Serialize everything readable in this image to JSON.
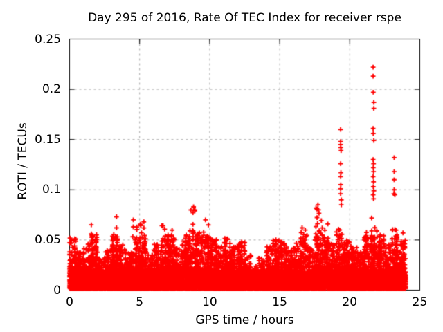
{
  "chart_data": {
    "type": "scatter",
    "title": "Day 295 of 2016, Rate Of TEC Index for receiver rspe",
    "xlabel": "GPS time / hours",
    "ylabel": "ROTI / TECUs",
    "xlim": [
      0,
      25
    ],
    "ylim": [
      0,
      0.25
    ],
    "xticks": [
      0,
      5,
      10,
      15,
      20,
      25
    ],
    "yticks": [
      0,
      0.05,
      0.1,
      0.15,
      0.2,
      0.25
    ],
    "xtick_labels": [
      "0",
      "5",
      "10",
      "15",
      "20",
      "25"
    ],
    "ytick_labels": [
      "0",
      "0.05",
      "0.1",
      "0.15",
      "0.2",
      "0.25"
    ],
    "grid": true,
    "legend": "none",
    "marker": "plus",
    "marker_color": "#ff0000",
    "grid_color": "#ababab",
    "border_color": "#000000",
    "year": 2016,
    "day_of_year": 295,
    "receiver": "rspe",
    "data_hours_range": [
      0,
      24
    ],
    "dense_band_top": 0.018,
    "envelope_bin_hours": 0.5,
    "envelope_max": [
      0.052,
      0.038,
      0.046,
      0.056,
      0.032,
      0.04,
      0.056,
      0.046,
      0.038,
      0.063,
      0.068,
      0.035,
      0.046,
      0.066,
      0.06,
      0.042,
      0.056,
      0.08,
      0.058,
      0.068,
      0.052,
      0.044,
      0.052,
      0.044,
      0.048,
      0.036,
      0.024,
      0.032,
      0.044,
      0.051,
      0.048,
      0.04,
      0.047,
      0.06,
      0.042,
      0.082,
      0.068,
      0.046,
      0.062,
      0.05,
      0.044,
      0.038,
      0.058,
      0.072,
      0.055,
      0.046,
      0.062,
      0.05
    ],
    "outliers": [
      [
        1.55,
        0.065
      ],
      [
        1.55,
        0.056
      ],
      [
        3.35,
        0.073
      ],
      [
        3.35,
        0.062
      ],
      [
        4.55,
        0.07
      ],
      [
        4.55,
        0.063
      ],
      [
        5.3,
        0.068
      ],
      [
        8.85,
        0.083
      ],
      [
        8.95,
        0.08
      ],
      [
        9.7,
        0.07
      ],
      [
        16.6,
        0.062
      ],
      [
        17.73,
        0.085
      ],
      [
        17.78,
        0.08
      ],
      [
        19.35,
        0.16
      ],
      [
        19.35,
        0.148
      ],
      [
        19.35,
        0.145
      ],
      [
        19.36,
        0.142
      ],
      [
        19.38,
        0.139
      ],
      [
        19.35,
        0.126
      ],
      [
        19.37,
        0.117
      ],
      [
        19.35,
        0.113
      ],
      [
        19.36,
        0.105
      ],
      [
        19.35,
        0.101
      ],
      [
        19.35,
        0.096
      ],
      [
        19.4,
        0.09
      ],
      [
        19.4,
        0.085
      ],
      [
        21.67,
        0.222
      ],
      [
        21.67,
        0.213
      ],
      [
        21.68,
        0.197
      ],
      [
        21.72,
        0.187
      ],
      [
        21.72,
        0.181
      ],
      [
        21.67,
        0.161
      ],
      [
        21.68,
        0.156
      ],
      [
        21.72,
        0.149
      ],
      [
        21.67,
        0.13
      ],
      [
        21.7,
        0.126
      ],
      [
        21.68,
        0.122
      ],
      [
        21.7,
        0.118
      ],
      [
        21.67,
        0.113
      ],
      [
        21.7,
        0.108
      ],
      [
        21.68,
        0.103
      ],
      [
        21.72,
        0.099
      ],
      [
        21.67,
        0.095
      ],
      [
        21.7,
        0.091
      ],
      [
        23.17,
        0.132
      ],
      [
        23.17,
        0.118
      ],
      [
        23.17,
        0.11
      ],
      [
        23.17,
        0.1
      ],
      [
        23.15,
        0.096
      ],
      [
        23.22,
        0.095
      ],
      [
        23.8,
        0.057
      ]
    ]
  }
}
